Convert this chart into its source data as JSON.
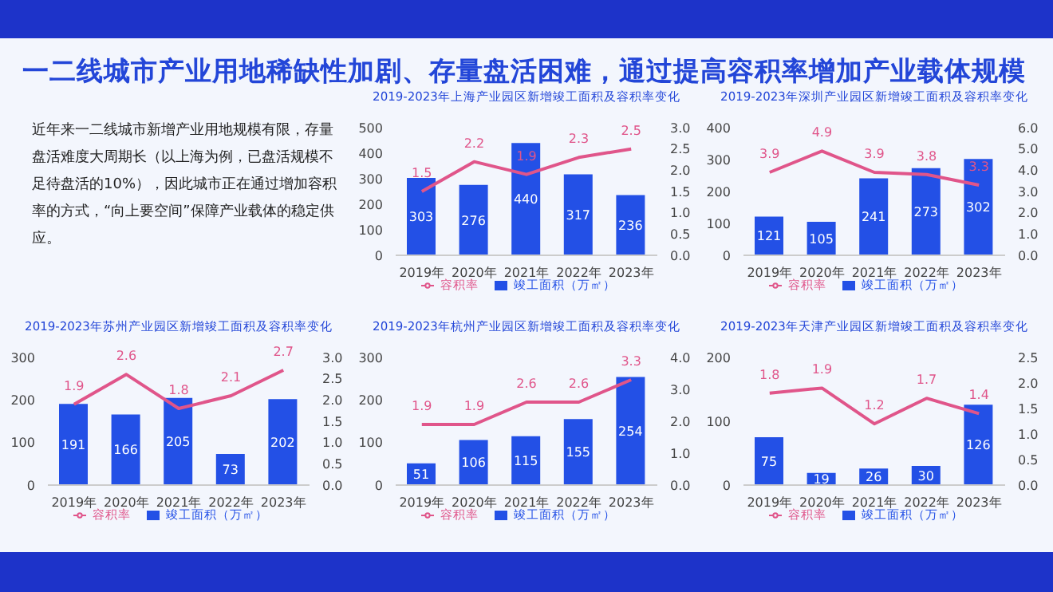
{
  "chart_data": [
    {
      "type": "other",
      "title": "一二线城市产业用地稀缺性加剧、存量盘活困难，通过提高容积率增加产业载体规模",
      "annotations": [
        "近年来一二线城市新增产业用地规模有限，存量盘活难度大周期长（以上海为例，已盘活规模不足待盘活的10%），因此城市正在通过增加容积率的方式，“向上要空间”保障产业载体的稳定供应。"
      ]
    },
    {
      "type": "bar",
      "title": "2019-2023年上海产业园区新增竣工面积及容积率变化",
      "categories": [
        "2019年",
        "2020年",
        "2021年",
        "2022年",
        "2023年"
      ],
      "series": [
        {
          "name": "竣工面积（万㎡）",
          "type": "bar",
          "color": "#2350e6",
          "values": [
            303,
            276,
            440,
            317,
            236
          ]
        },
        {
          "name": "容积率",
          "type": "line",
          "axis": "y2",
          "color": "#e0558a",
          "values": [
            1.5,
            2.2,
            1.9,
            2.3,
            2.5
          ]
        }
      ],
      "ylim": [
        0,
        500
      ],
      "yticks": [
        0,
        100,
        200,
        300,
        400,
        500
      ],
      "y2lim": [
        0,
        3
      ],
      "y2ticks": [
        {
          "value": 0,
          "label": "0.0"
        },
        0.5,
        {
          "value": 1,
          "label": "1.0"
        },
        1.5,
        {
          "value": 2,
          "label": "2.0"
        },
        2.5,
        {
          "value": 3,
          "label": "3.0"
        }
      ],
      "data_labels": true,
      "legend": "bottom",
      "marker": "none",
      "grid": false
    },
    {
      "type": "bar",
      "title": "2019-2023年深圳产业园区新增竣工面积及容积率变化",
      "categories": [
        "2019年",
        "2020年",
        "2021年",
        "2022年",
        "2023年"
      ],
      "series": [
        {
          "name": "竣工面积（万㎡）",
          "type": "bar",
          "color": "#2350e6",
          "values": [
            121,
            105,
            241,
            273,
            302
          ]
        },
        {
          "name": "容积率",
          "type": "line",
          "axis": "y2",
          "color": "#e0558a",
          "values": [
            3.9,
            4.9,
            3.9,
            3.8,
            3.3
          ]
        }
      ],
      "ylim": [
        0,
        400
      ],
      "yticks": [
        0,
        100,
        200,
        300,
        400
      ],
      "y2lim": [
        0,
        6
      ],
      "y2ticks": [
        {
          "value": 0,
          "label": "0.0"
        },
        {
          "value": 1,
          "label": "1.0"
        },
        {
          "value": 2,
          "label": "2.0"
        },
        {
          "value": 3,
          "label": "3.0"
        },
        {
          "value": 4,
          "label": "4.0"
        },
        {
          "value": 5,
          "label": "5.0"
        },
        {
          "value": 6,
          "label": "6.0"
        }
      ],
      "data_labels": true,
      "legend": "bottom",
      "marker": "none",
      "grid": false
    },
    {
      "type": "bar",
      "title": "2019-2023年苏州产业园区新增竣工面积及容积率变化",
      "categories": [
        "2019年",
        "2020年",
        "2021年",
        "2022年",
        "2023年"
      ],
      "series": [
        {
          "name": "竣工面积（万㎡）",
          "type": "bar",
          "color": "#2350e6",
          "values": [
            191,
            166,
            205,
            73,
            202
          ]
        },
        {
          "name": "容积率",
          "type": "line",
          "axis": "y2",
          "color": "#e0558a",
          "values": [
            1.9,
            2.6,
            1.8,
            2.1,
            2.7
          ]
        }
      ],
      "ylim": [
        0,
        300
      ],
      "yticks": [
        0,
        100,
        200,
        300
      ],
      "y2lim": [
        0,
        3
      ],
      "y2ticks": [
        {
          "value": 0,
          "label": "0.0"
        },
        0.5,
        {
          "value": 1,
          "label": "1.0"
        },
        1.5,
        {
          "value": 2,
          "label": "2.0"
        },
        2.5,
        {
          "value": 3,
          "label": "3.0"
        }
      ],
      "data_labels": true,
      "legend": "bottom",
      "marker": "none",
      "grid": false
    },
    {
      "type": "bar",
      "title": "2019-2023年杭州产业园区新增竣工面积及容积率变化",
      "categories": [
        "2019年",
        "2020年",
        "2021年",
        "2022年",
        "2023年"
      ],
      "series": [
        {
          "name": "竣工面积（万㎡）",
          "type": "bar",
          "color": "#2350e6",
          "values": [
            51,
            106,
            115,
            155,
            254
          ]
        },
        {
          "name": "容积率",
          "type": "line",
          "axis": "y2",
          "color": "#e0558a",
          "values": [
            1.9,
            1.9,
            2.6,
            2.6,
            3.3
          ]
        }
      ],
      "ylim": [
        0,
        300
      ],
      "yticks": [
        0,
        100,
        200,
        300
      ],
      "y2lim": [
        0,
        4
      ],
      "y2ticks": [
        {
          "value": 0,
          "label": "0.0"
        },
        {
          "value": 1,
          "label": "1.0"
        },
        {
          "value": 2,
          "label": "2.0"
        },
        {
          "value": 3,
          "label": "3.0"
        },
        {
          "value": 4,
          "label": "4.0"
        }
      ],
      "data_labels": true,
      "legend": "bottom",
      "marker": "none",
      "grid": false
    },
    {
      "type": "bar",
      "title": "2019-2023年天津产业园区新增竣工面积及容积率变化",
      "categories": [
        "2019年",
        "2020年",
        "2021年",
        "2022年",
        "2023年"
      ],
      "series": [
        {
          "name": "竣工面积（万㎡）",
          "type": "bar",
          "color": "#2350e6",
          "values": [
            75,
            19,
            26,
            30,
            126
          ]
        },
        {
          "name": "容积率",
          "type": "line",
          "axis": "y2",
          "color": "#e0558a",
          "values": [
            1.8,
            1.9,
            1.2,
            1.7,
            1.4
          ]
        }
      ],
      "ylim": [
        0,
        200
      ],
      "yticks": [
        0,
        100,
        200
      ],
      "y2lim": [
        0,
        2.5
      ],
      "y2ticks": [
        {
          "value": 0,
          "label": "0.0"
        },
        0.5,
        {
          "value": 1,
          "label": "1.0"
        },
        1.5,
        {
          "value": 2,
          "label": "2.0"
        },
        2.5
      ],
      "data_labels": true,
      "legend": "bottom",
      "marker": "none",
      "grid": false
    }
  ]
}
